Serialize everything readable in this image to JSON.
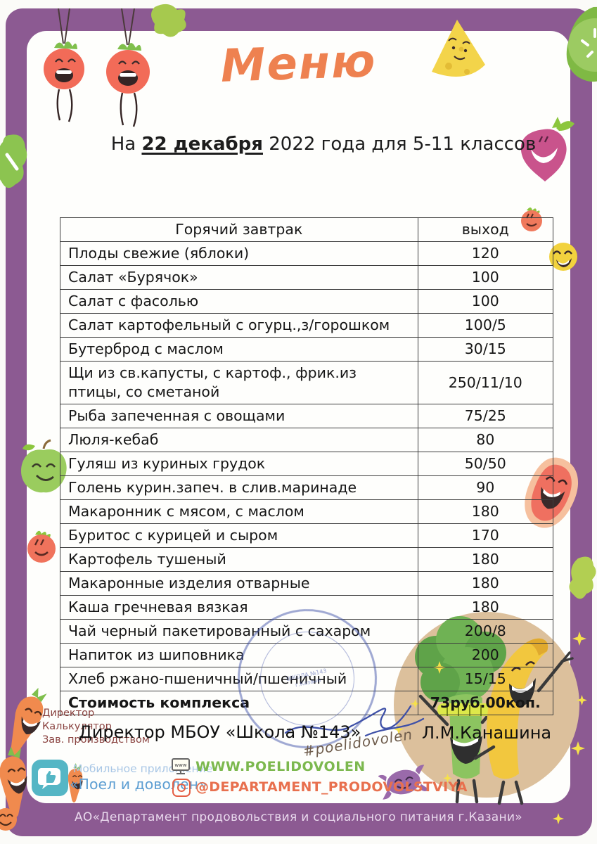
{
  "page": {
    "title": "Меню",
    "subtitle_prefix": "На ",
    "subtitle_date": "22 декабря",
    "subtitle_suffix": " 2022 года для 5-11 классов"
  },
  "table": {
    "header": {
      "dish": "Горячий завтрак",
      "out": "выход"
    },
    "rows": [
      {
        "dish": "Плоды свежие (яблоки)",
        "out": "120"
      },
      {
        "dish": "Салат «Бурячок»",
        "out": "100"
      },
      {
        "dish": "Салат с фасолью",
        "out": "100"
      },
      {
        "dish": "Салат картофельный с огурц.,з/горошком",
        "out": "100/5"
      },
      {
        "dish": "Бутерброд с маслом",
        "out": "30/15"
      },
      {
        "dish": "Щи из св.капусты, с картоф., фрик.из птицы, со сметаной",
        "out": "250/11/10"
      },
      {
        "dish": "Рыба запеченная с овощами",
        "out": "75/25"
      },
      {
        "dish": "Люля-кебаб",
        "out": "80"
      },
      {
        "dish": "Гуляш из куриных грудок",
        "out": "50/50"
      },
      {
        "dish": "Голень курин.запеч. в слив.маринаде",
        "out": "90"
      },
      {
        "dish": "Макаронник с мясом, с маслом",
        "out": "180"
      },
      {
        "dish": "Буритос с курицей и сыром",
        "out": "170"
      },
      {
        "dish": "Картофель тушеный",
        "out": "180"
      },
      {
        "dish": "Макаронные изделия отварные",
        "out": "180"
      },
      {
        "dish": "Каша гречневая вязкая",
        "out": "180"
      },
      {
        "dish": "Чай черный пакетированный с сахаром",
        "out": "200/8"
      },
      {
        "dish": "Напиток из шиповника",
        "out": "200"
      },
      {
        "dish": "Хлеб ржано-пшеничный/пшеничный",
        "out": "15/15"
      },
      {
        "dish": "Стоимость комплекса",
        "out": "73руб.00коп.",
        "bold": true
      }
    ]
  },
  "signatures": {
    "left_titles": [
      "Директор",
      "Калькулятор",
      "Зав. производством"
    ],
    "director_line": "Директор МБОУ «Школа №143»",
    "signer_name": "Л.М.Канашина",
    "hashtag": "#poelidovolen",
    "stamp_lines": [
      "ШКОЛА №143",
      "г.Казани"
    ]
  },
  "footer": {
    "app_label_top": "Мобильное приложение",
    "app_label_bottom": "«Поел и доволен»",
    "website": "WWW.POELIDOVOLEN",
    "instagram": "@DEPARTAMENT_PRODOVOLSTVIYA",
    "org_line": "АО«Департамент продовольствия и социального питания г.Казани»"
  },
  "colors": {
    "frame_purple": "#8c5a92",
    "title_orange": "#ee8150",
    "website_green": "#7cb84e",
    "instagram_orange": "#e8704e",
    "app_teal": "#55b6c5",
    "stamp_blue": "#4254aa",
    "signature_blue": "#3f51a8"
  }
}
